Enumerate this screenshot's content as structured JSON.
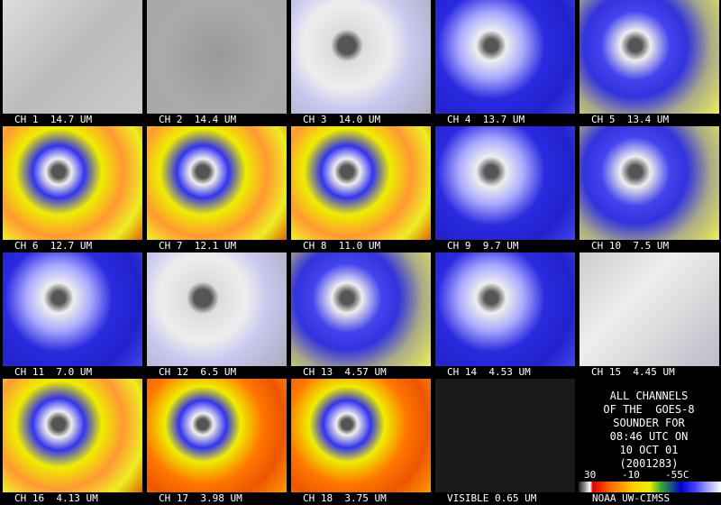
{
  "tiles": [
    {
      "label": "CH 1  14.7 UM"
    },
    {
      "label": "CH 2  14.4 UM"
    },
    {
      "label": "CH 3  14.0 UM"
    },
    {
      "label": "CH 4  13.7 UM"
    },
    {
      "label": "CH 5  13.4 UM"
    },
    {
      "label": "CH 6  12.7 UM"
    },
    {
      "label": "CH 7  12.1 UM"
    },
    {
      "label": "CH 8  11.0 UM"
    },
    {
      "label": "CH 9  9.7 UM"
    },
    {
      "label": "CH 10  7.5 UM"
    },
    {
      "label": "CH 11  7.0 UM"
    },
    {
      "label": "CH 12  6.5 UM"
    },
    {
      "label": "CH 13  4.57 UM"
    },
    {
      "label": "CH 14  4.53 UM"
    },
    {
      "label": "CH 15  4.45 UM"
    },
    {
      "label": "CH 16  4.13 UM"
    },
    {
      "label": "CH 17  3.98 UM"
    },
    {
      "label": "CH 18  3.75 UM"
    },
    {
      "label": "VISIBLE 0.65 UM"
    }
  ],
  "info": {
    "lines": [
      "ALL CHANNELS",
      "OF THE  GOES-8",
      "SOUNDER FOR",
      "08:46 UTC ON",
      "10 OCT 01",
      "(2001283)"
    ]
  },
  "scale": {
    "labels": [
      "30",
      "-10",
      "-55C"
    ]
  },
  "credit": "NOAA UW-CIMSS"
}
